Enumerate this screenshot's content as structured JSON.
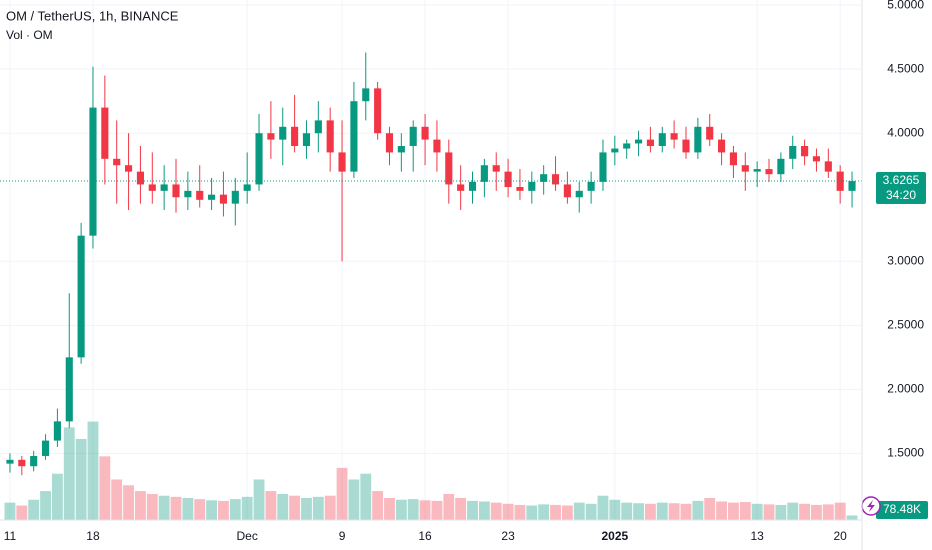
{
  "chart_data": {
    "type": "candlestick",
    "title": "OM / TetherUS, 1h, BINANCE",
    "subtitle": "Vol · OM",
    "up_color": "#089981",
    "down_color": "#f23645",
    "grid": true,
    "open": [
      1.42,
      1.45,
      1.4,
      1.48,
      1.6,
      1.75,
      2.25,
      3.2,
      4.2,
      3.8,
      3.75,
      3.7,
      3.6,
      3.55,
      3.6,
      3.5,
      3.55,
      3.48,
      3.52,
      3.45,
      3.55,
      3.6,
      4.0,
      3.95,
      4.05,
      3.9,
      4.0,
      4.1,
      3.85,
      3.7,
      4.25,
      4.35,
      4.0,
      3.85,
      3.9,
      4.05,
      3.95,
      3.85,
      3.6,
      3.55,
      3.62,
      3.75,
      3.7,
      3.58,
      3.55,
      3.62,
      3.68,
      3.6,
      3.5,
      3.55,
      3.62,
      3.85,
      3.88,
      3.92,
      3.95,
      3.9,
      4.0,
      3.95,
      3.85,
      4.05,
      3.95,
      3.85,
      3.75,
      3.7,
      3.72,
      3.68,
      3.8,
      3.9,
      3.82,
      3.78,
      3.7,
      3.55
    ],
    "high": [
      1.5,
      1.48,
      1.52,
      1.65,
      1.85,
      2.75,
      3.3,
      4.52,
      4.45,
      4.1,
      4.0,
      3.9,
      3.85,
      3.75,
      3.8,
      3.7,
      3.75,
      3.65,
      3.7,
      3.65,
      3.85,
      4.15,
      4.25,
      4.2,
      4.3,
      4.1,
      4.25,
      4.2,
      4.1,
      4.4,
      4.63,
      4.4,
      4.05,
      4.0,
      4.1,
      4.15,
      4.1,
      3.95,
      3.75,
      3.7,
      3.8,
      3.85,
      3.8,
      3.72,
      3.7,
      3.75,
      3.82,
      3.7,
      3.62,
      3.7,
      3.95,
      3.98,
      3.95,
      4.02,
      4.05,
      4.05,
      4.1,
      4.05,
      4.12,
      4.15,
      4.0,
      3.9,
      3.85,
      3.78,
      3.8,
      3.85,
      3.98,
      3.95,
      3.88,
      3.88,
      3.75,
      3.7
    ],
    "low": [
      1.35,
      1.33,
      1.36,
      1.45,
      1.55,
      1.7,
      2.2,
      3.1,
      3.6,
      3.45,
      3.4,
      3.45,
      3.45,
      3.4,
      3.38,
      3.4,
      3.42,
      3.4,
      3.35,
      3.28,
      3.45,
      3.55,
      3.8,
      3.75,
      3.85,
      3.8,
      3.85,
      3.7,
      3.0,
      3.65,
      4.1,
      3.95,
      3.75,
      3.7,
      3.7,
      3.75,
      3.7,
      3.45,
      3.4,
      3.45,
      3.5,
      3.55,
      3.5,
      3.48,
      3.45,
      3.52,
      3.55,
      3.45,
      3.38,
      3.45,
      3.55,
      3.75,
      3.8,
      3.82,
      3.85,
      3.85,
      3.88,
      3.8,
      3.8,
      3.9,
      3.75,
      3.65,
      3.55,
      3.58,
      3.62,
      3.62,
      3.72,
      3.75,
      3.7,
      3.65,
      3.45,
      3.42
    ],
    "close": [
      1.45,
      1.4,
      1.48,
      1.6,
      1.75,
      2.25,
      3.2,
      4.2,
      3.8,
      3.75,
      3.7,
      3.6,
      3.55,
      3.6,
      3.5,
      3.55,
      3.48,
      3.52,
      3.45,
      3.55,
      3.6,
      4.0,
      3.95,
      4.05,
      3.9,
      4.0,
      4.1,
      3.85,
      3.7,
      4.25,
      4.35,
      4.0,
      3.85,
      3.9,
      4.05,
      3.95,
      3.85,
      3.6,
      3.55,
      3.62,
      3.75,
      3.7,
      3.58,
      3.55,
      3.62,
      3.68,
      3.6,
      3.5,
      3.55,
      3.62,
      3.85,
      3.88,
      3.92,
      3.95,
      3.9,
      4.0,
      3.95,
      3.85,
      4.05,
      3.95,
      3.85,
      3.75,
      3.7,
      3.72,
      3.68,
      3.8,
      3.9,
      3.82,
      3.78,
      3.7,
      3.55,
      3.6265
    ],
    "volume": [
      300000,
      250000,
      350000,
      500000,
      800000,
      1600000,
      1400000,
      1700000,
      1100000,
      700000,
      600000,
      500000,
      450000,
      420000,
      400000,
      380000,
      360000,
      340000,
      330000,
      360000,
      400000,
      700000,
      500000,
      450000,
      420000,
      380000,
      400000,
      420000,
      900000,
      700000,
      800000,
      500000,
      380000,
      350000,
      360000,
      340000,
      330000,
      450000,
      380000,
      330000,
      320000,
      300000,
      280000,
      260000,
      250000,
      270000,
      260000,
      250000,
      300000,
      280000,
      420000,
      350000,
      300000,
      290000,
      280000,
      300000,
      290000,
      280000,
      330000,
      380000,
      320000,
      300000,
      310000,
      280000,
      270000,
      260000,
      300000,
      280000,
      260000,
      270000,
      300000,
      78480
    ],
    "volume_label": "78.48K",
    "volume_lim": [
      0,
      1900000
    ],
    "last_price": 3.6265,
    "countdown": "34:20",
    "ylim": [
      0.98,
      5.04
    ],
    "yticks": [
      {
        "value": 1.5,
        "label": "1.5000"
      },
      {
        "value": 2,
        "label": "2.0000"
      },
      {
        "value": 2.5,
        "label": "2.5000"
      },
      {
        "value": 3,
        "label": "3.0000"
      },
      {
        "value": 4,
        "label": "4.0000"
      },
      {
        "value": 4.5,
        "label": "4.5000"
      },
      {
        "value": 5,
        "label": "5.0000"
      }
    ],
    "xlim": [
      -0.84,
      71.84
    ],
    "xticks": [
      {
        "value": 0,
        "label": "11"
      },
      {
        "value": 7,
        "label": "18"
      },
      {
        "value": 20,
        "label": "Dec"
      },
      {
        "value": 28,
        "label": "9"
      },
      {
        "value": 35,
        "label": "16"
      },
      {
        "value": 42,
        "label": "23"
      },
      {
        "value": 51,
        "label": "2025"
      },
      {
        "value": 63,
        "label": "13"
      },
      {
        "value": 70,
        "label": "20"
      }
    ]
  }
}
